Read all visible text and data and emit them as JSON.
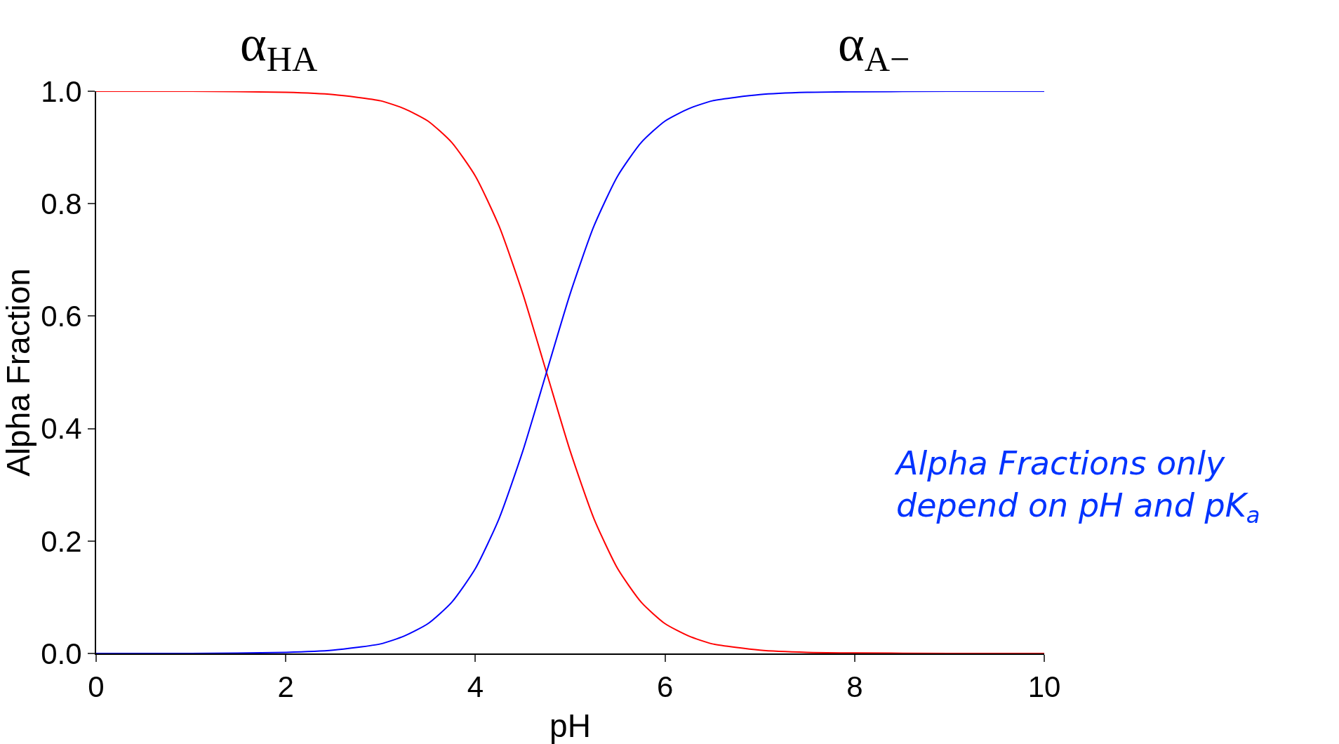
{
  "chart_data": {
    "type": "line",
    "xlabel": "pH",
    "ylabel": "Alpha Fraction",
    "x": [
      0,
      1,
      2,
      2.5,
      3,
      3.25,
      3.5,
      3.75,
      4,
      4.25,
      4.5,
      4.75,
      5,
      5.25,
      5.5,
      5.75,
      6,
      6.25,
      6.5,
      7,
      7.5,
      8,
      9,
      10
    ],
    "series": [
      {
        "name": "α$_{HA}$",
        "color": "#ff0000",
        "values": [
          1.0,
          1.0,
          0.998,
          0.994,
          0.983,
          0.969,
          0.947,
          0.909,
          0.849,
          0.76,
          0.64,
          0.5,
          0.36,
          0.24,
          0.151,
          0.091,
          0.053,
          0.031,
          0.017,
          0.006,
          0.002,
          0.001,
          0.0,
          0.0
        ]
      },
      {
        "name": "α$_{A−}$",
        "color": "#0000ff",
        "values": [
          0.0,
          0.0,
          0.002,
          0.006,
          0.017,
          0.031,
          0.053,
          0.091,
          0.151,
          0.24,
          0.36,
          0.5,
          0.64,
          0.76,
          0.849,
          0.909,
          0.947,
          0.969,
          0.983,
          0.994,
          0.998,
          0.999,
          1.0,
          1.0
        ]
      }
    ],
    "xlim": [
      0,
      10
    ],
    "xticks": [
      0,
      2,
      4,
      6,
      8,
      10
    ],
    "ylim": [
      0,
      1
    ],
    "yticks": [
      {
        "value": 0,
        "label": "0.0"
      },
      {
        "value": 0.2,
        "label": "0.2"
      },
      {
        "value": 0.4,
        "label": "0.4"
      },
      {
        "value": 0.6,
        "label": "0.6"
      },
      {
        "value": 0.8,
        "label": "0.8"
      },
      {
        "value": 1,
        "label": "1.0"
      }
    ],
    "grid": false,
    "legend": false,
    "marker": "none",
    "line_style": "solid",
    "annotations": [
      "Alpha Fractions only depend on pH and pK$_{a}$"
    ]
  }
}
